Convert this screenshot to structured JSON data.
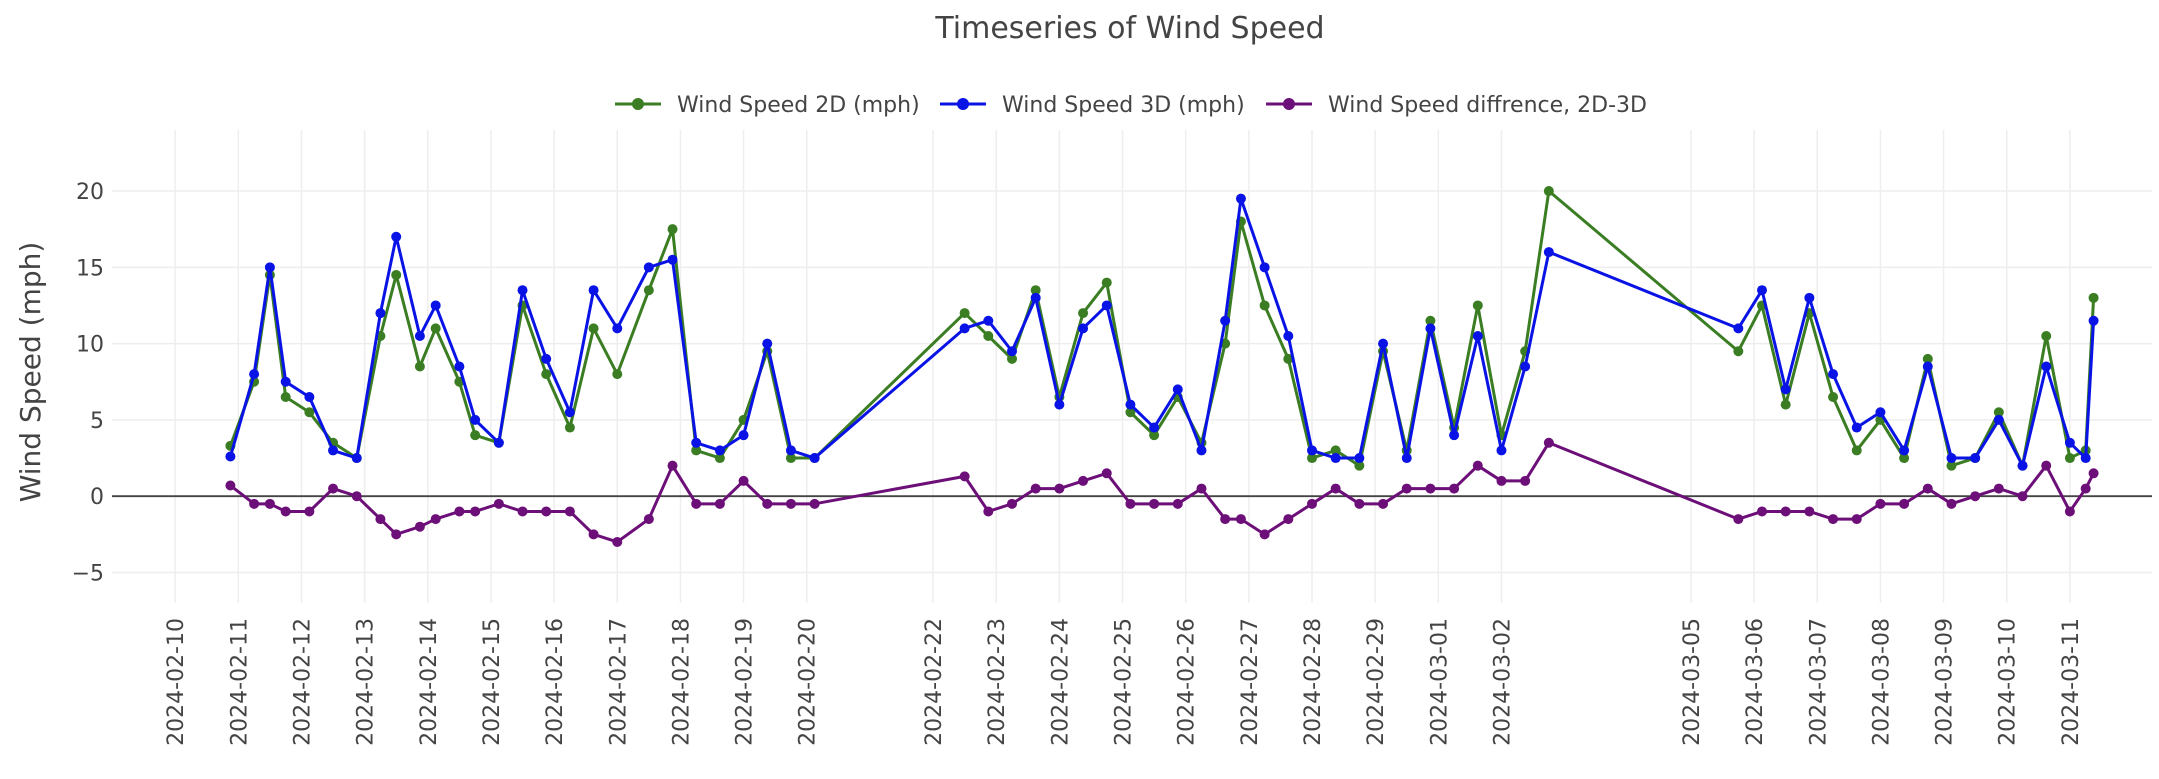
{
  "chart_data": {
    "type": "line",
    "title": "Timeseries of Wind Speed",
    "xlabel": "",
    "ylabel": "Wind Speed (mph)",
    "ylim": [
      -7,
      24
    ],
    "ytick_values": [
      -5,
      0,
      5,
      10,
      15,
      20
    ],
    "ytick_labels": [
      "−5",
      "0",
      "5",
      "10",
      "15",
      "20"
    ],
    "xlim": [
      "2024-02-09",
      "2024-03-12.3"
    ],
    "xtick_labels": [
      "2024-02-10",
      "2024-02-11",
      "2024-02-12",
      "2024-02-13",
      "2024-02-14",
      "2024-02-15",
      "2024-02-16",
      "2024-02-17",
      "2024-02-18",
      "2024-02-19",
      "2024-02-20",
      "2024-02-22",
      "2024-02-23",
      "2024-02-24",
      "2024-02-25",
      "2024-02-26",
      "2024-02-27",
      "2024-02-28",
      "2024-02-29",
      "2024-03-01",
      "2024-03-02",
      "2024-03-05",
      "2024-03-06",
      "2024-03-07",
      "2024-03-08",
      "2024-03-09",
      "2024-03-10",
      "2024-03-11"
    ],
    "grid": true,
    "legend_position": "top-center",
    "series": [
      {
        "name": "Wind Speed 2D (mph)",
        "color": "#3a7d23",
        "x": [
          "2024-02-10 21:00",
          "2024-02-11 06:00",
          "2024-02-11 12:00",
          "2024-02-11 18:00",
          "2024-02-12 03:00",
          "2024-02-12 12:00",
          "2024-02-12 21:00",
          "2024-02-13 06:00",
          "2024-02-13 12:00",
          "2024-02-13 21:00",
          "2024-02-14 03:00",
          "2024-02-14 12:00",
          "2024-02-14 18:00",
          "2024-02-15 03:00",
          "2024-02-15 12:00",
          "2024-02-15 21:00",
          "2024-02-16 06:00",
          "2024-02-16 15:00",
          "2024-02-17 00:00",
          "2024-02-17 12:00",
          "2024-02-17 21:00",
          "2024-02-18 06:00",
          "2024-02-18 15:00",
          "2024-02-19 00:00",
          "2024-02-19 09:00",
          "2024-02-19 18:00",
          "2024-02-20 03:00",
          "2024-02-22 12:00",
          "2024-02-22 21:00",
          "2024-02-23 06:00",
          "2024-02-23 15:00",
          "2024-02-24 00:00",
          "2024-02-24 09:00",
          "2024-02-24 18:00",
          "2024-02-25 03:00",
          "2024-02-25 12:00",
          "2024-02-25 21:00",
          "2024-02-26 06:00",
          "2024-02-26 15:00",
          "2024-02-26 21:00",
          "2024-02-27 06:00",
          "2024-02-27 15:00",
          "2024-02-28 00:00",
          "2024-02-28 09:00",
          "2024-02-28 18:00",
          "2024-02-29 03:00",
          "2024-02-29 12:00",
          "2024-02-29 21:00",
          "2024-03-01 06:00",
          "2024-03-01 15:00",
          "2024-03-02 00:00",
          "2024-03-02 09:00",
          "2024-03-02 18:00",
          "2024-03-05 18:00",
          "2024-03-06 03:00",
          "2024-03-06 12:00",
          "2024-03-06 21:00",
          "2024-03-07 06:00",
          "2024-03-07 15:00",
          "2024-03-08 00:00",
          "2024-03-08 09:00",
          "2024-03-08 18:00",
          "2024-03-09 03:00",
          "2024-03-09 12:00",
          "2024-03-09 21:00",
          "2024-03-10 06:00",
          "2024-03-10 15:00",
          "2024-03-11 00:00",
          "2024-03-11 06:00",
          "2024-03-11 09:00"
        ],
        "values": [
          3.3,
          7.5,
          14.5,
          6.5,
          5.5,
          3.5,
          2.5,
          10.5,
          14.5,
          8.5,
          11.0,
          7.5,
          4.0,
          3.5,
          12.5,
          8.0,
          4.5,
          11.0,
          8.0,
          13.5,
          17.5,
          3.0,
          2.5,
          5.0,
          9.5,
          2.5,
          2.5,
          12.0,
          10.5,
          9.0,
          13.5,
          6.5,
          12.0,
          14.0,
          5.5,
          4.0,
          6.5,
          3.5,
          10.0,
          18.0,
          12.5,
          9.0,
          2.5,
          3.0,
          2.0,
          9.5,
          3.0,
          11.5,
          4.5,
          12.5,
          4.0,
          9.5,
          20.0,
          9.5,
          12.5,
          6.0,
          12.0,
          6.5,
          3.0,
          5.0,
          2.5,
          9.0,
          2.0,
          2.5,
          5.5,
          2.0,
          10.5,
          2.5,
          3.0,
          13.0
        ]
      },
      {
        "name": "Wind Speed 3D (mph)",
        "color": "#0a13e5",
        "x": [
          "2024-02-10 21:00",
          "2024-02-11 06:00",
          "2024-02-11 12:00",
          "2024-02-11 18:00",
          "2024-02-12 03:00",
          "2024-02-12 12:00",
          "2024-02-12 21:00",
          "2024-02-13 06:00",
          "2024-02-13 12:00",
          "2024-02-13 21:00",
          "2024-02-14 03:00",
          "2024-02-14 12:00",
          "2024-02-14 18:00",
          "2024-02-15 03:00",
          "2024-02-15 12:00",
          "2024-02-15 21:00",
          "2024-02-16 06:00",
          "2024-02-16 15:00",
          "2024-02-17 00:00",
          "2024-02-17 12:00",
          "2024-02-17 21:00",
          "2024-02-18 06:00",
          "2024-02-18 15:00",
          "2024-02-19 00:00",
          "2024-02-19 09:00",
          "2024-02-19 18:00",
          "2024-02-20 03:00",
          "2024-02-22 12:00",
          "2024-02-22 21:00",
          "2024-02-23 06:00",
          "2024-02-23 15:00",
          "2024-02-24 00:00",
          "2024-02-24 09:00",
          "2024-02-24 18:00",
          "2024-02-25 03:00",
          "2024-02-25 12:00",
          "2024-02-25 21:00",
          "2024-02-26 06:00",
          "2024-02-26 15:00",
          "2024-02-26 21:00",
          "2024-02-27 06:00",
          "2024-02-27 15:00",
          "2024-02-28 00:00",
          "2024-02-28 09:00",
          "2024-02-28 18:00",
          "2024-02-29 03:00",
          "2024-02-29 12:00",
          "2024-02-29 21:00",
          "2024-03-01 06:00",
          "2024-03-01 15:00",
          "2024-03-02 00:00",
          "2024-03-02 09:00",
          "2024-03-02 18:00",
          "2024-03-05 18:00",
          "2024-03-06 03:00",
          "2024-03-06 12:00",
          "2024-03-06 21:00",
          "2024-03-07 06:00",
          "2024-03-07 15:00",
          "2024-03-08 00:00",
          "2024-03-08 09:00",
          "2024-03-08 18:00",
          "2024-03-09 03:00",
          "2024-03-09 12:00",
          "2024-03-09 21:00",
          "2024-03-10 06:00",
          "2024-03-10 15:00",
          "2024-03-11 00:00",
          "2024-03-11 06:00",
          "2024-03-11 09:00"
        ],
        "values": [
          2.6,
          8.0,
          15.0,
          7.5,
          6.5,
          3.0,
          2.5,
          12.0,
          17.0,
          10.5,
          12.5,
          8.5,
          5.0,
          3.5,
          13.5,
          9.0,
          5.5,
          13.5,
          11.0,
          15.0,
          15.5,
          3.5,
          3.0,
          4.0,
          10.0,
          3.0,
          2.5,
          11.0,
          11.5,
          9.5,
          13.0,
          6.0,
          11.0,
          12.5,
          6.0,
          4.5,
          7.0,
          3.0,
          11.5,
          19.5,
          15.0,
          10.5,
          3.0,
          2.5,
          2.5,
          10.0,
          2.5,
          11.0,
          4.0,
          10.5,
          3.0,
          8.5,
          16.0,
          11.0,
          13.5,
          7.0,
          13.0,
          8.0,
          4.5,
          5.5,
          3.0,
          8.5,
          2.5,
          2.5,
          5.0,
          2.0,
          8.5,
          3.5,
          2.5,
          11.5
        ]
      },
      {
        "name": "Wind Speed diffrence, 2D-3D",
        "color": "#6d0f78",
        "x": [
          "2024-02-10 21:00",
          "2024-02-11 06:00",
          "2024-02-11 12:00",
          "2024-02-11 18:00",
          "2024-02-12 03:00",
          "2024-02-12 12:00",
          "2024-02-12 21:00",
          "2024-02-13 06:00",
          "2024-02-13 12:00",
          "2024-02-13 21:00",
          "2024-02-14 03:00",
          "2024-02-14 12:00",
          "2024-02-14 18:00",
          "2024-02-15 03:00",
          "2024-02-15 12:00",
          "2024-02-15 21:00",
          "2024-02-16 06:00",
          "2024-02-16 15:00",
          "2024-02-17 00:00",
          "2024-02-17 12:00",
          "2024-02-17 21:00",
          "2024-02-18 06:00",
          "2024-02-18 15:00",
          "2024-02-19 00:00",
          "2024-02-19 09:00",
          "2024-02-19 18:00",
          "2024-02-20 03:00",
          "2024-02-22 12:00",
          "2024-02-22 21:00",
          "2024-02-23 06:00",
          "2024-02-23 15:00",
          "2024-02-24 00:00",
          "2024-02-24 09:00",
          "2024-02-24 18:00",
          "2024-02-25 03:00",
          "2024-02-25 12:00",
          "2024-02-25 21:00",
          "2024-02-26 06:00",
          "2024-02-26 15:00",
          "2024-02-26 21:00",
          "2024-02-27 06:00",
          "2024-02-27 15:00",
          "2024-02-28 00:00",
          "2024-02-28 09:00",
          "2024-02-28 18:00",
          "2024-02-29 03:00",
          "2024-02-29 12:00",
          "2024-02-29 21:00",
          "2024-03-01 06:00",
          "2024-03-01 15:00",
          "2024-03-02 00:00",
          "2024-03-02 09:00",
          "2024-03-02 18:00",
          "2024-03-05 18:00",
          "2024-03-06 03:00",
          "2024-03-06 12:00",
          "2024-03-06 21:00",
          "2024-03-07 06:00",
          "2024-03-07 15:00",
          "2024-03-08 00:00",
          "2024-03-08 09:00",
          "2024-03-08 18:00",
          "2024-03-09 03:00",
          "2024-03-09 12:00",
          "2024-03-09 21:00",
          "2024-03-10 06:00",
          "2024-03-10 15:00",
          "2024-03-11 00:00",
          "2024-03-11 06:00",
          "2024-03-11 09:00"
        ],
        "values": [
          0.7,
          -0.5,
          -0.5,
          -1.0,
          -1.0,
          0.5,
          0.0,
          -1.5,
          -2.5,
          -2.0,
          -1.5,
          -1.0,
          -1.0,
          -0.5,
          -1.0,
          -1.0,
          -1.0,
          -2.5,
          -3.0,
          -1.5,
          2.0,
          -0.5,
          -0.5,
          1.0,
          -0.5,
          -0.5,
          -0.5,
          1.3,
          -1.0,
          -0.5,
          0.5,
          0.5,
          1.0,
          1.5,
          -0.5,
          -0.5,
          -0.5,
          0.5,
          -1.5,
          -1.5,
          -2.5,
          -1.5,
          -0.5,
          0.5,
          -0.5,
          -0.5,
          0.5,
          0.5,
          0.5,
          2.0,
          1.0,
          1.0,
          3.5,
          -1.5,
          -1.0,
          -1.0,
          -1.0,
          -1.5,
          -1.5,
          -0.5,
          -0.5,
          0.5,
          -0.5,
          0.0,
          0.5,
          0.0,
          2.0,
          -1.0,
          0.5,
          1.5
        ]
      }
    ]
  }
}
